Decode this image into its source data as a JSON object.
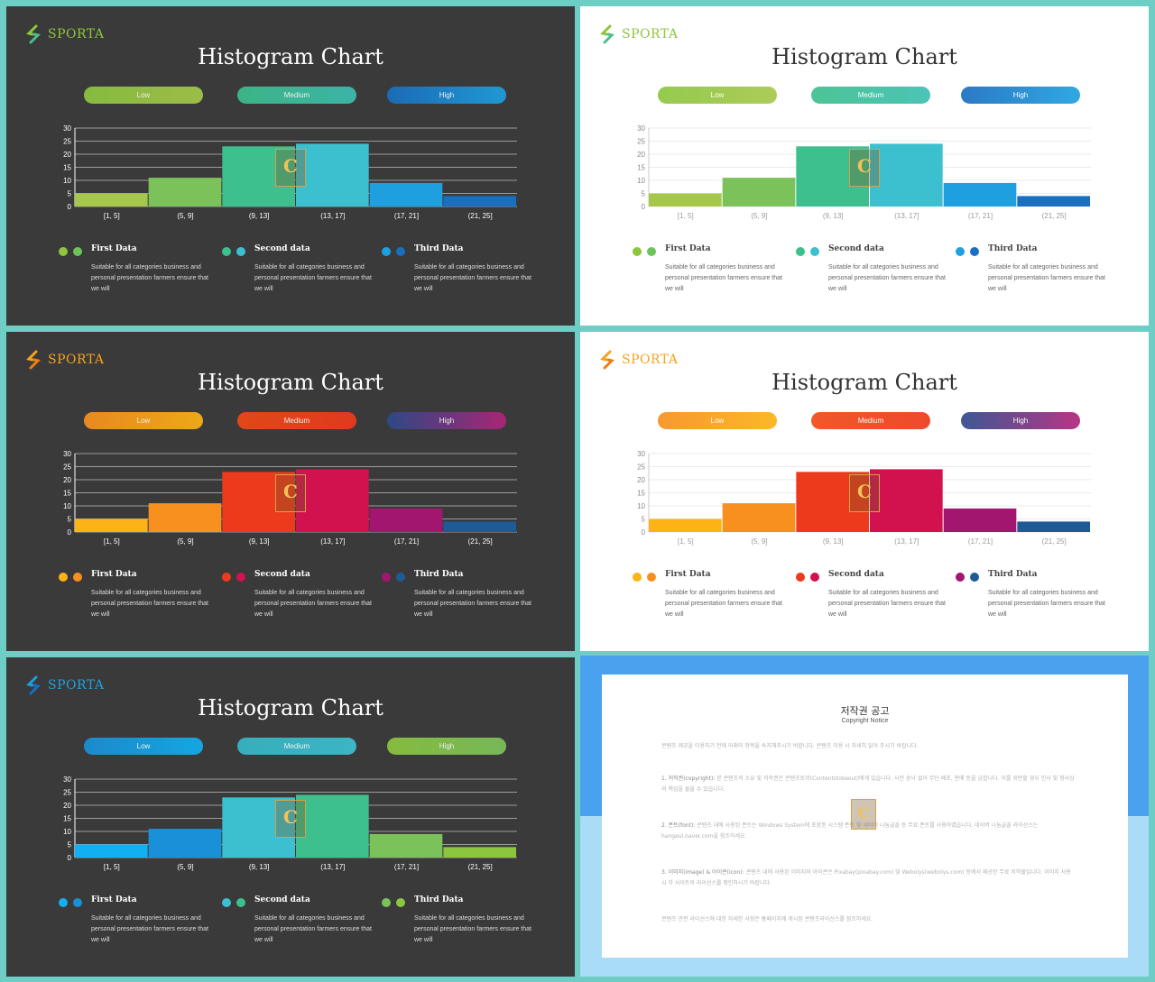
{
  "brand": "SPORTA",
  "slides": [
    {
      "theme": "dark",
      "brand_color": "#8cc63f",
      "logo_colors": [
        "#8cc63f",
        "#4cbf8c"
      ],
      "title": "Histogram Chart",
      "pills": [
        {
          "label": "Low",
          "from": "#8cc63f",
          "to": "#a6c84a"
        },
        {
          "label": "Medium",
          "from": "#3dbf8e",
          "to": "#3cbfb0"
        },
        {
          "label": "High",
          "from": "#1a6fc0",
          "to": "#1ea0e0"
        }
      ],
      "legend": [
        {
          "title": "First Data",
          "desc": "Suitable for all categories business and personal presentation farmers ensure that we will",
          "dots": [
            "#8cc63f",
            "#6cc45a"
          ]
        },
        {
          "title": "Second data",
          "desc": "Suitable for all categories business and personal presentation farmers ensure that we will",
          "dots": [
            "#3dbf8e",
            "#3cc0d0"
          ]
        },
        {
          "title": "Third Data",
          "desc": "Suitable for all categories business and personal presentation farmers ensure that we will",
          "dots": [
            "#1ea0e0",
            "#1a6fc0"
          ]
        }
      ]
    },
    {
      "theme": "light",
      "brand_color": "#8cc63f",
      "logo_colors": [
        "#8cc63f",
        "#4cbf8c"
      ],
      "title": "Histogram Chart",
      "pills": [
        {
          "label": "Low",
          "from": "#8cc63f",
          "to": "#a6c84a"
        },
        {
          "label": "Medium",
          "from": "#3dbf8e",
          "to": "#3cbfb0"
        },
        {
          "label": "High",
          "from": "#1a6fc0",
          "to": "#1ea0e0"
        }
      ],
      "legend": [
        {
          "title": "First Data",
          "desc": "Suitable for all categories business and personal presentation farmers ensure that we will",
          "dots": [
            "#8cc63f",
            "#6cc45a"
          ]
        },
        {
          "title": "Second data",
          "desc": "Suitable for all categories business and personal presentation farmers ensure that we will",
          "dots": [
            "#3dbf8e",
            "#3cc0d0"
          ]
        },
        {
          "title": "Third Data",
          "desc": "Suitable for all categories business and personal presentation farmers ensure that we will",
          "dots": [
            "#1ea0e0",
            "#1a6fc0"
          ]
        }
      ]
    },
    {
      "theme": "dark",
      "brand_color": "#f7a21b",
      "logo_colors": [
        "#f7a21b",
        "#f07c12"
      ],
      "title": "Histogram Chart",
      "pills": [
        {
          "label": "Low",
          "from": "#f7901e",
          "to": "#fbb315"
        },
        {
          "label": "Medium",
          "from": "#f04a16",
          "to": "#ee3a1c"
        },
        {
          "label": "High",
          "from": "#2e4a8c",
          "to": "#b0247a"
        }
      ],
      "legend": [
        {
          "title": "First Data",
          "desc": "Suitable for all categories business and personal presentation farmers ensure that we will",
          "dots": [
            "#fbb315",
            "#f7901e"
          ]
        },
        {
          "title": "Second data",
          "desc": "Suitable for all categories business and personal presentation farmers ensure that we will",
          "dots": [
            "#ee3a1c",
            "#d2124f"
          ]
        },
        {
          "title": "Third Data",
          "desc": "Suitable for all categories business and personal presentation farmers ensure that we will",
          "dots": [
            "#a3166f",
            "#1d5a96"
          ]
        }
      ]
    },
    {
      "theme": "light",
      "brand_color": "#f7a21b",
      "logo_colors": [
        "#f7a21b",
        "#f07c12"
      ],
      "title": "Histogram Chart",
      "pills": [
        {
          "label": "Low",
          "from": "#f7901e",
          "to": "#fbb315"
        },
        {
          "label": "Medium",
          "from": "#f04a16",
          "to": "#ee3a1c"
        },
        {
          "label": "High",
          "from": "#2e4a8c",
          "to": "#b0247a"
        }
      ],
      "legend": [
        {
          "title": "First Data",
          "desc": "Suitable for all categories business and personal presentation farmers ensure that we will",
          "dots": [
            "#fbb315",
            "#f7901e"
          ]
        },
        {
          "title": "Second data",
          "desc": "Suitable for all categories business and personal presentation farmers ensure that we will",
          "dots": [
            "#ee3a1c",
            "#d2124f"
          ]
        },
        {
          "title": "Third Data",
          "desc": "Suitable for all categories business and personal presentation farmers ensure that we will",
          "dots": [
            "#a3166f",
            "#1d5a96"
          ]
        }
      ]
    },
    {
      "theme": "dark",
      "brand_color": "#1ea0e0",
      "logo_colors": [
        "#1ea0e0",
        "#1a6fc0"
      ],
      "title": "Histogram Chart",
      "pills": [
        {
          "label": "Low",
          "from": "#1a90d8",
          "to": "#12b0f0"
        },
        {
          "label": "Medium",
          "from": "#36b8c8",
          "to": "#3cc0d0"
        },
        {
          "label": "High",
          "from": "#8cc63f",
          "to": "#7cc25a"
        }
      ],
      "legend": [
        {
          "title": "First Data",
          "desc": "Suitable for all categories business and personal presentation farmers ensure that we will",
          "dots": [
            "#12b0f0",
            "#1a90d8"
          ]
        },
        {
          "title": "Second data",
          "desc": "Suitable for all categories business and personal presentation farmers ensure that we will",
          "dots": [
            "#3cc0d0",
            "#3dbf8e"
          ]
        },
        {
          "title": "Third Data",
          "desc": "Suitable for all categories business and personal presentation farmers ensure that we will",
          "dots": [
            "#7cc25a",
            "#8cc63f"
          ]
        }
      ]
    }
  ],
  "chart_data": [
    {
      "type": "bar",
      "categories": [
        "[1, 5]",
        "(5, 9]",
        "(9, 13]",
        "(13, 17]",
        "(17, 21]",
        "(21, 25]"
      ],
      "values": [
        5,
        11,
        23,
        24,
        9,
        4
      ],
      "ylim": [
        0,
        30
      ],
      "yticks": [
        0,
        5,
        10,
        15,
        20,
        25,
        30
      ],
      "grid": true,
      "colors": [
        "#a6c84a",
        "#7cc25a",
        "#3dbf8e",
        "#3cc0d0",
        "#1ea0e0",
        "#1a6fc0"
      ]
    },
    {
      "type": "bar",
      "categories": [
        "[1, 5]",
        "(5, 9]",
        "(9, 13]",
        "(13, 17]",
        "(17, 21]",
        "(21, 25]"
      ],
      "values": [
        5,
        11,
        23,
        24,
        9,
        4
      ],
      "ylim": [
        0,
        30
      ],
      "yticks": [
        0,
        5,
        10,
        15,
        20,
        25,
        30
      ],
      "grid": true,
      "colors": [
        "#a6c84a",
        "#7cc25a",
        "#3dbf8e",
        "#3cc0d0",
        "#1ea0e0",
        "#1a6fc0"
      ]
    },
    {
      "type": "bar",
      "categories": [
        "[1, 5]",
        "(5, 9]",
        "(9, 13]",
        "(13, 17]",
        "(17, 21]",
        "(21, 25]"
      ],
      "values": [
        5,
        11,
        23,
        24,
        9,
        4
      ],
      "ylim": [
        0,
        30
      ],
      "yticks": [
        0,
        5,
        10,
        15,
        20,
        25,
        30
      ],
      "grid": true,
      "colors": [
        "#fbb315",
        "#f7901e",
        "#ee3a1c",
        "#d2124f",
        "#a3166f",
        "#1d5a96"
      ]
    },
    {
      "type": "bar",
      "categories": [
        "[1, 5]",
        "(5, 9]",
        "(9, 13]",
        "(13, 17]",
        "(17, 21]",
        "(21, 25]"
      ],
      "values": [
        5,
        11,
        23,
        24,
        9,
        4
      ],
      "ylim": [
        0,
        30
      ],
      "yticks": [
        0,
        5,
        10,
        15,
        20,
        25,
        30
      ],
      "grid": true,
      "colors": [
        "#fbb315",
        "#f7901e",
        "#ee3a1c",
        "#d2124f",
        "#a3166f",
        "#1d5a96"
      ]
    },
    {
      "type": "bar",
      "categories": [
        "[1, 5]",
        "(5, 9]",
        "(9, 13]",
        "(13, 17]",
        "(17, 21]",
        "(21, 25]"
      ],
      "values": [
        5,
        11,
        23,
        24,
        9,
        4
      ],
      "ylim": [
        0,
        30
      ],
      "yticks": [
        0,
        5,
        10,
        15,
        20,
        25,
        30
      ],
      "grid": true,
      "colors": [
        "#12b0f0",
        "#1a90d8",
        "#3cc0d0",
        "#3dbf8e",
        "#7cc25a",
        "#8cc63f"
      ]
    }
  ],
  "notice": {
    "title": "저작권 공고",
    "subtitle": "Copyright Notice",
    "intro": "콘텐츠 제공을 이용하기 전에 아래의 항목을 숙지해주시기 바랍니다. 콘텐츠 이용 시 자세히 읽어 주시기 바랍니다.",
    "p1_head": "1. 저작권(copyright):",
    "p1": "본 콘텐츠의 소유 및 저작권은 콘텐츠토끼(Contentstokeout)에게 있습니다. 사전 승낙 없이 무단 배포, 판매 등을 금합니다. 이를 위반할 경우 민사 및 형사상의 책임을 물을 수 있습니다.",
    "p2_head": "2. 폰트(font):",
    "p2": "콘텐츠 내에 사용된 폰트는 Windows System에 포함된 시스템 폰트 및 네이버 나눔글꼴 등 무료 폰트를 사용하였습니다. 네이버 나눔글꼴 라이선스는 hangeul.naver.com을 참조하세요.",
    "p3_head": "3. 이미지(image) & 아이콘(icon):",
    "p3": "콘텐츠 내에 사용된 이미지와 아이콘은 Pixabay(pixabay.com) 및 Webolys(webolys.com) 등에서 제공한 무료 저작물입니다. 이미지 사용 시 각 사이트의 라이선스를 확인하시기 바랍니다.",
    "outro": "콘텐츠 관련 라이선스에 대한 자세한 사항은 홈페이지에 게시된 콘텐츠라이선스를 참조하세요."
  }
}
